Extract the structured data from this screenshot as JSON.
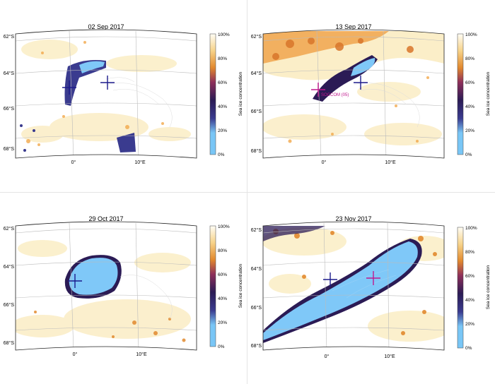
{
  "colorbar": {
    "label": "Sea ice concentration",
    "ticks": [
      "100%",
      "80%",
      "60%",
      "40%",
      "20%",
      "0%"
    ]
  },
  "colors": {
    "open_water": "#ffffff",
    "ice_full": "#7fc8f8",
    "ice_dark": "#2b1b55",
    "ice_mid": "#e2892e",
    "ice_low": "#fbeec8",
    "buoy_blue": "#1c1a8c",
    "buoy_magenta": "#c0188e"
  },
  "maps": [
    {
      "title": "02 Sep 2017",
      "lat_labels": [
        "62°S",
        "64°S",
        "66°S",
        "68°S"
      ],
      "lon_labels": [
        "0°",
        "10°E"
      ],
      "markers": [
        {
          "type": "cross",
          "color": "buoy_blue"
        },
        {
          "type": "cross",
          "color": "buoy_blue"
        }
      ],
      "annotation": ""
    },
    {
      "title": "13 Sep 2017",
      "lat_labels": [
        "62°S",
        "64°S",
        "66°S",
        "68°S"
      ],
      "lon_labels": [
        "0°",
        "10°E"
      ],
      "markers": [
        {
          "type": "cross",
          "color": "buoy_magenta"
        },
        {
          "type": "cross",
          "color": "buoy_blue"
        }
      ],
      "annotation": "SOCCOM (05)"
    },
    {
      "title": "29 Oct 2017",
      "lat_labels": [
        "62°S",
        "64°S",
        "66°S",
        "68°S"
      ],
      "lon_labels": [
        "0°",
        "10°E"
      ],
      "markers": [
        {
          "type": "cross",
          "color": "buoy_blue"
        }
      ],
      "annotation": ""
    },
    {
      "title": "23 Nov 2017",
      "lat_labels": [
        "62°S",
        "64°S",
        "66°S",
        "68°S"
      ],
      "lon_labels": [
        "0°",
        "10°E"
      ],
      "markers": [
        {
          "type": "cross",
          "color": "buoy_blue"
        },
        {
          "type": "cross",
          "color": "buoy_magenta"
        }
      ],
      "annotation": ""
    }
  ]
}
